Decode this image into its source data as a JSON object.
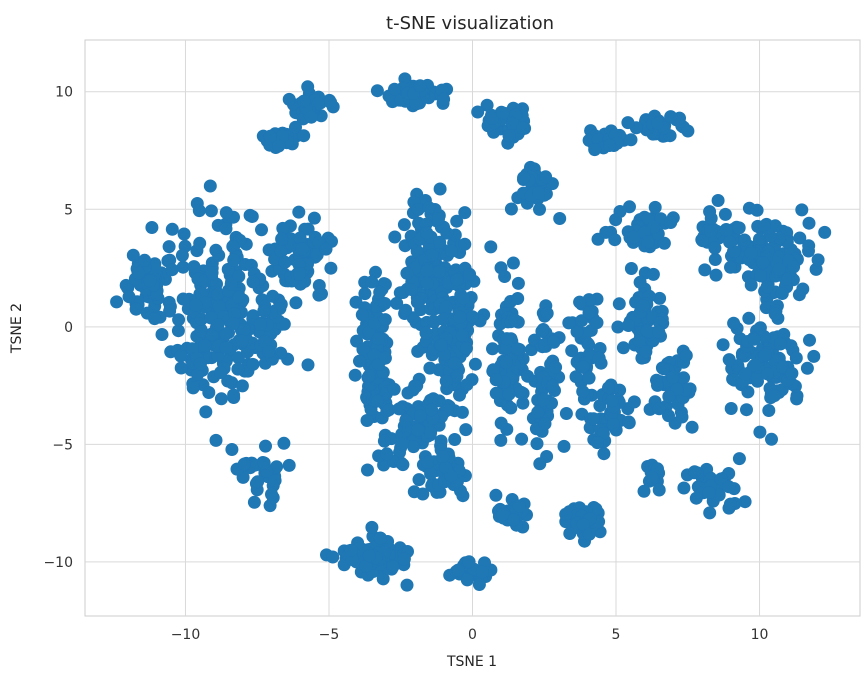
{
  "chart_data": {
    "type": "scatter",
    "title": "t-SNE visualization",
    "xlabel": "TSNE 1",
    "ylabel": "TSNE 2",
    "xlim": [
      -13.5,
      13.5
    ],
    "ylim": [
      -12.3,
      12.2
    ],
    "xticks": [
      -10,
      -5,
      0,
      5,
      10
    ],
    "yticks": [
      -10,
      -5,
      0,
      5,
      10
    ],
    "xtick_labels": [
      "−10",
      "−5",
      "0",
      "5",
      "10"
    ],
    "ytick_labels": [
      "−10",
      "−5",
      "0",
      "5",
      "10"
    ],
    "grid": true,
    "legend": "none",
    "color": "#1f77b4",
    "series": [
      {
        "clusters": [
          {
            "center": [
              -8.6,
              0.6
            ],
            "spread": [
              1.9,
              3.6
            ],
            "count": 260
          },
          {
            "center": [
              -11.3,
              1.8
            ],
            "spread": [
              0.7,
              1.4
            ],
            "count": 50
          },
          {
            "center": [
              -6.0,
              3.2
            ],
            "spread": [
              0.9,
              1.6
            ],
            "count": 60
          },
          {
            "center": [
              -7.3,
              -6.3
            ],
            "spread": [
              0.9,
              0.9
            ],
            "count": 30
          },
          {
            "center": [
              -5.6,
              9.4
            ],
            "spread": [
              0.6,
              0.5
            ],
            "count": 30
          },
          {
            "center": [
              -6.6,
              8.0
            ],
            "spread": [
              0.6,
              0.4
            ],
            "count": 25
          },
          {
            "center": [
              -1.7,
              2.5
            ],
            "spread": [
              0.8,
              2.6
            ],
            "count": 120
          },
          {
            "center": [
              -0.6,
              0.0
            ],
            "spread": [
              0.7,
              3.4
            ],
            "count": 140
          },
          {
            "center": [
              -3.4,
              -1.0
            ],
            "spread": [
              0.5,
              3.0
            ],
            "count": 110
          },
          {
            "center": [
              -2.0,
              -4.2
            ],
            "spread": [
              1.0,
              1.6
            ],
            "count": 80
          },
          {
            "center": [
              -1.2,
              -6.3
            ],
            "spread": [
              0.8,
              0.9
            ],
            "count": 40
          },
          {
            "center": [
              -3.5,
              -9.8
            ],
            "spread": [
              1.0,
              0.7
            ],
            "count": 85
          },
          {
            "center": [
              -1.9,
              10.0
            ],
            "spread": [
              0.9,
              0.5
            ],
            "count": 50
          },
          {
            "center": [
              1.2,
              8.7
            ],
            "spread": [
              0.9,
              0.7
            ],
            "count": 45
          },
          {
            "center": [
              2.1,
              6.0
            ],
            "spread": [
              0.6,
              1.0
            ],
            "count": 30
          },
          {
            "center": [
              1.3,
              -1.6
            ],
            "spread": [
              0.5,
              3.0
            ],
            "count": 80
          },
          {
            "center": [
              2.6,
              -2.3
            ],
            "spread": [
              0.5,
              3.2
            ],
            "count": 55
          },
          {
            "center": [
              3.9,
              -1.0
            ],
            "spread": [
              0.5,
              2.6
            ],
            "count": 45
          },
          {
            "center": [
              4.8,
              -3.8
            ],
            "spread": [
              0.7,
              1.3
            ],
            "count": 40
          },
          {
            "center": [
              1.4,
              -7.9
            ],
            "spread": [
              0.6,
              0.6
            ],
            "count": 30
          },
          {
            "center": [
              3.9,
              -8.2
            ],
            "spread": [
              0.6,
              0.7
            ],
            "count": 35
          },
          {
            "center": [
              0.1,
              -10.4
            ],
            "spread": [
              0.6,
              0.4
            ],
            "count": 20
          },
          {
            "center": [
              4.7,
              7.9
            ],
            "spread": [
              0.8,
              0.4
            ],
            "count": 25
          },
          {
            "center": [
              6.6,
              8.5
            ],
            "spread": [
              0.8,
              0.5
            ],
            "count": 30
          },
          {
            "center": [
              6.0,
              4.0
            ],
            "spread": [
              1.0,
              0.9
            ],
            "count": 45
          },
          {
            "center": [
              6.0,
              0.2
            ],
            "spread": [
              0.6,
              1.8
            ],
            "count": 55
          },
          {
            "center": [
              7.0,
              -2.6
            ],
            "spread": [
              0.7,
              1.5
            ],
            "count": 40
          },
          {
            "center": [
              10.3,
              2.9
            ],
            "spread": [
              1.3,
              1.7
            ],
            "count": 110
          },
          {
            "center": [
              10.2,
              -1.6
            ],
            "spread": [
              1.3,
              1.7
            ],
            "count": 100
          },
          {
            "center": [
              8.5,
              4.1
            ],
            "spread": [
              0.5,
              1.0
            ],
            "count": 25
          },
          {
            "center": [
              8.3,
              -6.8
            ],
            "spread": [
              0.8,
              1.0
            ],
            "count": 40
          },
          {
            "center": [
              6.2,
              -6.4
            ],
            "spread": [
              0.4,
              0.6
            ],
            "count": 15
          }
        ]
      }
    ]
  }
}
